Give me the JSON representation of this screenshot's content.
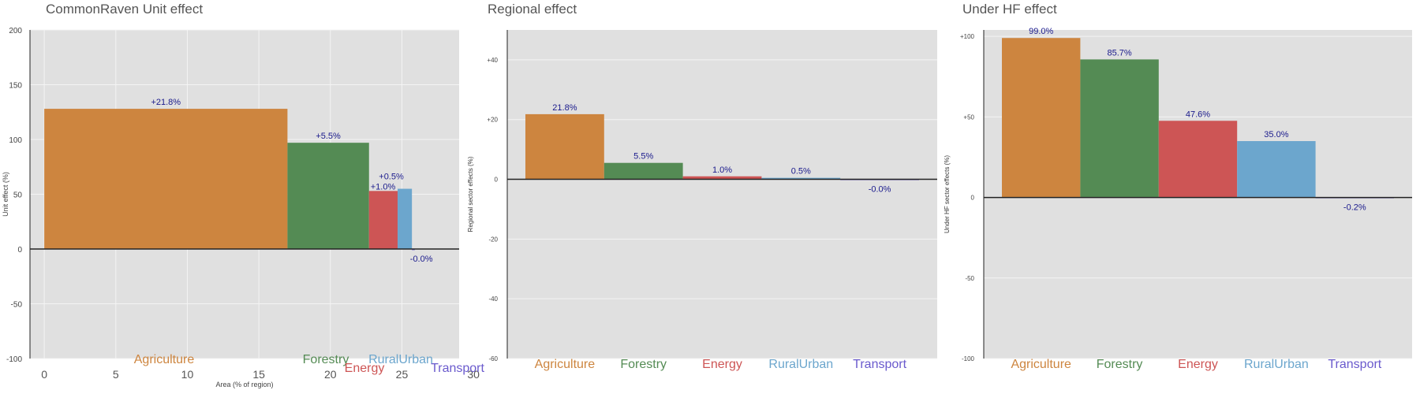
{
  "colors": {
    "Agriculture": "#cd853f",
    "Forestry": "#548b54",
    "Energy": "#cd5555",
    "RuralUrban": "#6ca6cd",
    "Transport": "#6a5acd",
    "bar_label": "#1a1a8c",
    "panel_bg": "#e0e0e0",
    "grid": "#f4f4f4",
    "tick_text": "#444444"
  },
  "chart_data": [
    {
      "type": "bar",
      "variable_width": true,
      "title": "CommonRaven Unit effect",
      "xlabel": "Area (% of region)",
      "ylabel": "Unit effect (%)",
      "xlim": [
        -1,
        29
      ],
      "ylim": [
        -100,
        200
      ],
      "x_ticks": [
        0,
        5,
        10,
        15,
        20,
        25,
        30
      ],
      "y_ticks": [
        -100,
        -50,
        0,
        50,
        100,
        150,
        200
      ],
      "y_tick_labels": [
        "-100",
        "-50",
        "0",
        "50",
        "100",
        "150",
        "200"
      ],
      "grid": true,
      "bars": [
        {
          "category": "Agriculture",
          "x_start": 0,
          "x_end": 17.0,
          "value": 128,
          "label": "+21.8%"
        },
        {
          "category": "Forestry",
          "x_start": 17.0,
          "x_end": 22.7,
          "value": 97,
          "label": "+5.5%"
        },
        {
          "category": "Energy",
          "x_start": 22.7,
          "x_end": 24.7,
          "value": 53,
          "label": "+1.0%"
        },
        {
          "category": "RuralUrban",
          "x_start": 24.7,
          "x_end": 25.7,
          "value": 55,
          "label": "+0.5%"
        },
        {
          "category": "Transport",
          "x_start": 25.7,
          "x_end": 25.9,
          "value": -1,
          "label": "-0.0%"
        }
      ]
    },
    {
      "type": "bar",
      "title": "Regional effect",
      "xlabel": "",
      "ylabel": "Regional sector effects (%)",
      "ylim": [
        -60,
        50
      ],
      "y_ticks": [
        -60,
        -40,
        -20,
        0,
        20,
        40
      ],
      "y_tick_labels": [
        "-60",
        "-40",
        "-20",
        "0",
        "+20",
        "+40"
      ],
      "grid": true,
      "categories": [
        "Agriculture",
        "Forestry",
        "Energy",
        "RuralUrban",
        "Transport"
      ],
      "values": [
        21.8,
        5.5,
        1.0,
        0.5,
        -0.02
      ],
      "labels": [
        "21.8%",
        "5.5%",
        "1.0%",
        "0.5%",
        "-0.0%"
      ]
    },
    {
      "type": "bar",
      "title": "Under HF effect",
      "xlabel": "",
      "ylabel": "Under HF sector effects (%)",
      "ylim": [
        -100,
        104
      ],
      "y_ticks": [
        -100,
        -50,
        0,
        50,
        100
      ],
      "y_tick_labels": [
        "-100",
        "-50",
        "0",
        "+50",
        "+100"
      ],
      "grid": true,
      "categories": [
        "Agriculture",
        "Forestry",
        "Energy",
        "RuralUrban",
        "Transport"
      ],
      "values": [
        99.0,
        85.7,
        47.6,
        35.0,
        -0.2
      ],
      "labels": [
        "99.0%",
        "85.7%",
        "47.6%",
        "35.0%",
        "-0.2%"
      ]
    }
  ]
}
